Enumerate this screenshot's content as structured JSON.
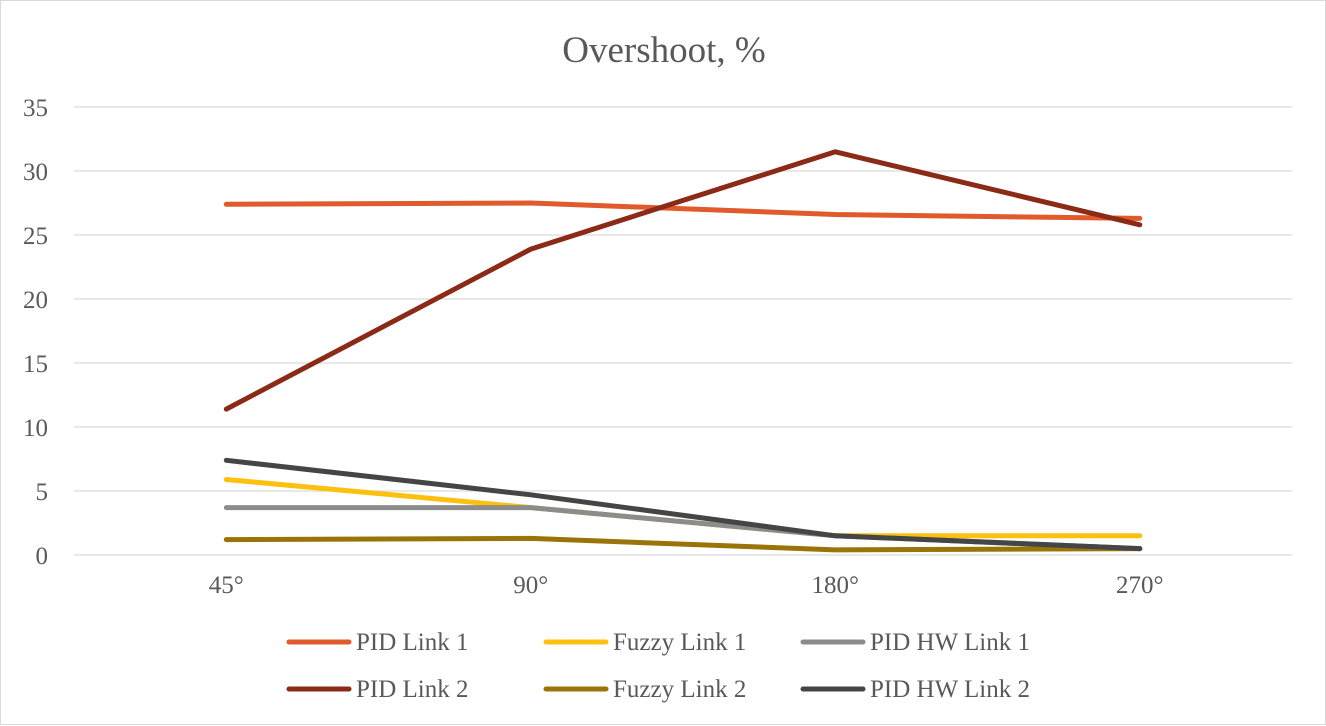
{
  "chart_data": {
    "type": "line",
    "title": "Overshoot, %",
    "xlabel": "",
    "ylabel": "",
    "categories": [
      "45°",
      "90°",
      "180°",
      "270°"
    ],
    "ylim": [
      0,
      35
    ],
    "yticks": [
      0,
      5,
      10,
      15,
      20,
      25,
      30,
      35
    ],
    "grid": true,
    "legend_position": "bottom",
    "series": [
      {
        "name": "PID Link 1",
        "color": "#e15a2b",
        "values": [
          27.4,
          27.5,
          26.6,
          26.3
        ]
      },
      {
        "name": "Fuzzy Link 1",
        "color": "#fcc10e",
        "values": [
          5.9,
          3.7,
          1.5,
          1.5
        ]
      },
      {
        "name": "PID HW Link 1",
        "color": "#8c8c8c",
        "values": [
          3.7,
          3.7,
          1.5,
          0.5
        ]
      },
      {
        "name": "PID Link 2",
        "color": "#8b2a16",
        "values": [
          11.4,
          23.9,
          31.5,
          25.8
        ]
      },
      {
        "name": "Fuzzy Link 2",
        "color": "#9a7409",
        "values": [
          1.2,
          1.3,
          0.4,
          0.5
        ]
      },
      {
        "name": "PID HW Link 2",
        "color": "#454545",
        "values": [
          7.4,
          4.7,
          1.5,
          0.5
        ]
      }
    ]
  }
}
